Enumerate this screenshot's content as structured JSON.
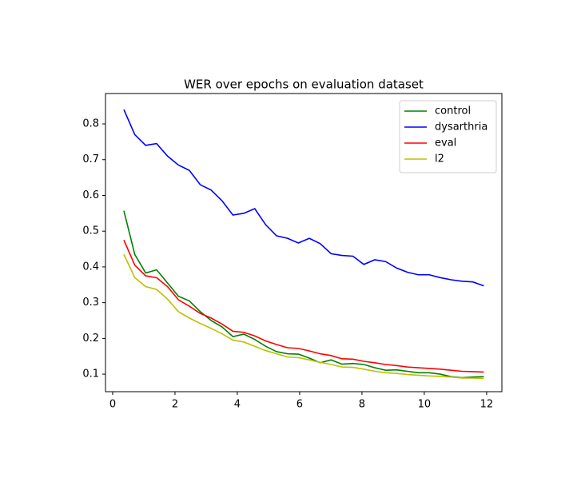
{
  "chart_data": {
    "type": "line",
    "title": "WER over epochs on evaluation dataset",
    "x": [
      0.36,
      0.71,
      1.06,
      1.41,
      1.76,
      2.11,
      2.46,
      2.81,
      3.16,
      3.51,
      3.86,
      4.21,
      4.56,
      4.91,
      5.26,
      5.61,
      5.96,
      6.31,
      6.66,
      7.01,
      7.36,
      7.71,
      8.06,
      8.41,
      8.76,
      9.11,
      9.46,
      9.81,
      10.16,
      10.51,
      10.86,
      11.21,
      11.56,
      11.91
    ],
    "series": [
      {
        "name": "control",
        "color": "#008000",
        "values": [
          0.557,
          0.435,
          0.383,
          0.392,
          0.355,
          0.318,
          0.305,
          0.275,
          0.25,
          0.232,
          0.205,
          0.212,
          0.197,
          0.178,
          0.163,
          0.157,
          0.156,
          0.145,
          0.132,
          0.14,
          0.128,
          0.13,
          0.127,
          0.118,
          0.111,
          0.112,
          0.108,
          0.104,
          0.104,
          0.1,
          0.093,
          0.09,
          0.092,
          0.093
        ]
      },
      {
        "name": "dysarthria",
        "color": "#0000ff",
        "values": [
          0.84,
          0.77,
          0.74,
          0.745,
          0.71,
          0.685,
          0.67,
          0.63,
          0.615,
          0.585,
          0.545,
          0.55,
          0.563,
          0.518,
          0.487,
          0.48,
          0.467,
          0.48,
          0.465,
          0.437,
          0.432,
          0.43,
          0.407,
          0.42,
          0.415,
          0.397,
          0.385,
          0.378,
          0.378,
          0.37,
          0.364,
          0.36,
          0.358,
          0.347
        ]
      },
      {
        "name": "eval",
        "color": "#ff0000",
        "values": [
          0.475,
          0.405,
          0.375,
          0.37,
          0.345,
          0.308,
          0.29,
          0.27,
          0.257,
          0.24,
          0.22,
          0.217,
          0.207,
          0.193,
          0.183,
          0.174,
          0.172,
          0.165,
          0.157,
          0.152,
          0.143,
          0.142,
          0.136,
          0.132,
          0.127,
          0.124,
          0.12,
          0.118,
          0.116,
          0.114,
          0.111,
          0.108,
          0.107,
          0.106
        ]
      },
      {
        "name": "l2",
        "color": "#bfbf00",
        "values": [
          0.435,
          0.37,
          0.345,
          0.337,
          0.31,
          0.275,
          0.257,
          0.242,
          0.228,
          0.213,
          0.195,
          0.19,
          0.178,
          0.166,
          0.157,
          0.148,
          0.146,
          0.14,
          0.133,
          0.127,
          0.12,
          0.119,
          0.114,
          0.108,
          0.104,
          0.102,
          0.099,
          0.097,
          0.095,
          0.094,
          0.092,
          0.089,
          0.089,
          0.088
        ]
      }
    ],
    "xlim": [
      -0.23,
      12.49
    ],
    "ylim": [
      0.051,
      0.885
    ],
    "xticks": [
      0,
      2,
      4,
      6,
      8,
      10,
      12
    ],
    "yticks": [
      0.1,
      0.2,
      0.3,
      0.4,
      0.5,
      0.6,
      0.7,
      0.8
    ],
    "legend": "upper right",
    "grid": false
  }
}
